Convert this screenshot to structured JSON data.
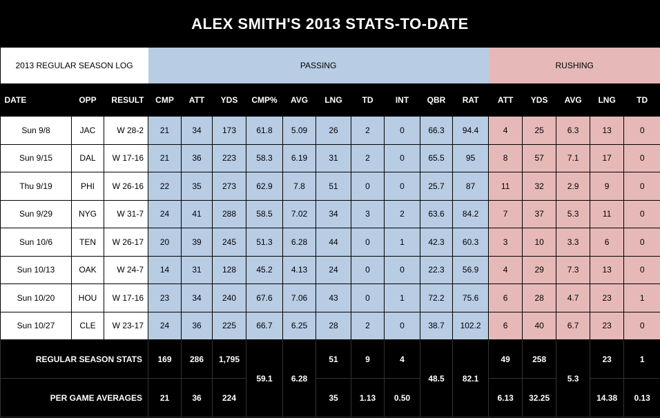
{
  "title": "ALEX SMITH'S 2013 STATS-TO-DATE",
  "groups": {
    "log": "2013 REGULAR SEASON LOG",
    "passing": "PASSING",
    "rushing": "RUSHING"
  },
  "headers": [
    "DATE",
    "OPP",
    "RESULT",
    "CMP",
    "ATT",
    "YDS",
    "CMP%",
    "AVG",
    "LNG",
    "TD",
    "INT",
    "QBR",
    "RAT",
    "ATT",
    "YDS",
    "AVG",
    "LNG",
    "TD"
  ],
  "rows": [
    [
      "Sun 9/8",
      "JAC",
      "W 28-2",
      "21",
      "34",
      "173",
      "61.8",
      "5.09",
      "26",
      "2",
      "0",
      "66.3",
      "94.4",
      "4",
      "25",
      "6.3",
      "13",
      "0"
    ],
    [
      "Sun 9/15",
      "DAL",
      "W 17-16",
      "21",
      "36",
      "223",
      "58.3",
      "6.19",
      "31",
      "2",
      "0",
      "65.5",
      "95",
      "8",
      "57",
      "7.1",
      "17",
      "0"
    ],
    [
      "Thu 9/19",
      "PHI",
      "W 26-16",
      "22",
      "35",
      "273",
      "62.9",
      "7.8",
      "51",
      "0",
      "0",
      "25.7",
      "87",
      "11",
      "32",
      "2.9",
      "9",
      "0"
    ],
    [
      "Sun 9/29",
      "NYG",
      "W 31-7",
      "24",
      "41",
      "288",
      "58.5",
      "7.02",
      "34",
      "3",
      "2",
      "63.6",
      "84.2",
      "7",
      "37",
      "5.3",
      "11",
      "0"
    ],
    [
      "Sun 10/6",
      "TEN",
      "W 26-17",
      "20",
      "39",
      "245",
      "51.3",
      "6.28",
      "44",
      "0",
      "1",
      "42.3",
      "60.3",
      "3",
      "10",
      "3.3",
      "6",
      "0"
    ],
    [
      "Sun 10/13",
      "OAK",
      "W 24-7",
      "14",
      "31",
      "128",
      "45.2",
      "4.13",
      "24",
      "0",
      "0",
      "22.3",
      "56.9",
      "4",
      "29",
      "7.3",
      "13",
      "0"
    ],
    [
      "Sun 10/20",
      "HOU",
      "W 17-16",
      "23",
      "34",
      "240",
      "67.6",
      "7.06",
      "43",
      "0",
      "1",
      "72.2",
      "75.6",
      "6",
      "28",
      "4.7",
      "23",
      "1"
    ],
    [
      "Sun 10/27",
      "CLE",
      "W 23-17",
      "24",
      "36",
      "225",
      "66.7",
      "6.25",
      "28",
      "2",
      "0",
      "38.7",
      "102.2",
      "6",
      "40",
      "6.7",
      "23",
      "0"
    ]
  ],
  "totals": {
    "label": "REGULAR SEASON STATS",
    "cmp": "169",
    "att": "286",
    "yds": "1,795",
    "lng": "51",
    "td": "9",
    "int": "4",
    "r_att": "49",
    "r_yds": "258",
    "r_lng": "23",
    "r_td": "1"
  },
  "merged": {
    "cmp_pct": "59.1",
    "avg": "6.28",
    "qbr": "48.5",
    "rat": "82.1",
    "r_avg": "5.3"
  },
  "averages": {
    "label": "PER GAME AVERAGES",
    "cmp": "21",
    "att": "36",
    "yds": "224",
    "lng": "35",
    "td": "1.13",
    "int": "0.50",
    "r_att": "6.13",
    "r_yds": "32.25",
    "r_lng": "14.38",
    "r_td": "0.13"
  }
}
